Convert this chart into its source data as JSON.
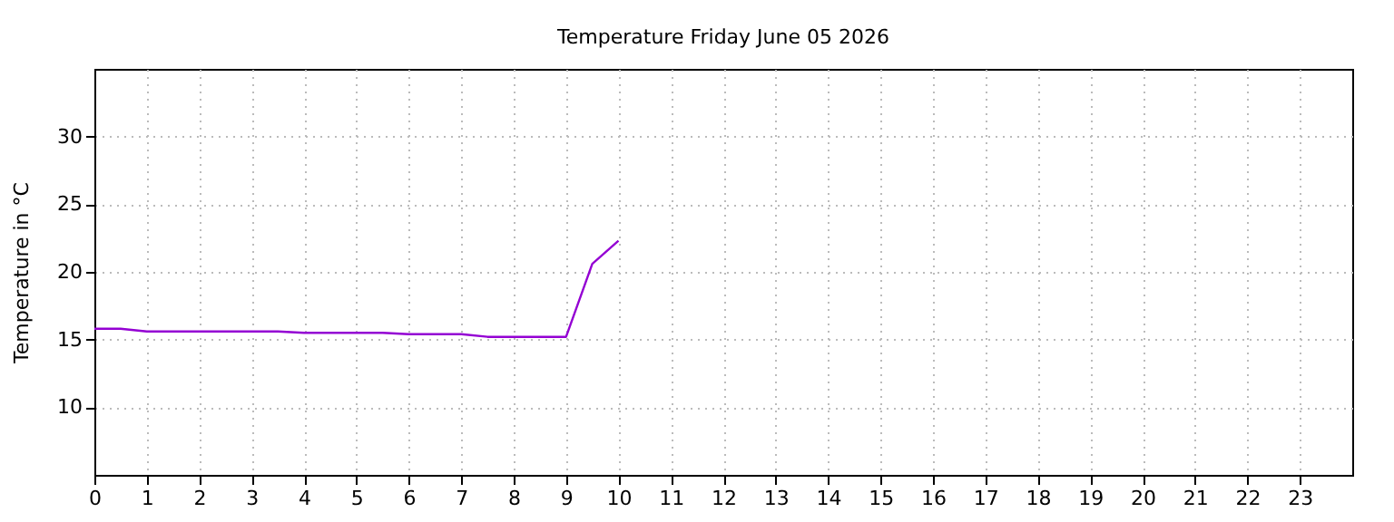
{
  "chart_data": {
    "type": "line",
    "title": "Temperature Friday June 05 2026",
    "ylabel": "Temperature in °C",
    "x": [
      0,
      0.5,
      1,
      3.5,
      4,
      5.5,
      6,
      7,
      7.5,
      9,
      9.5,
      10
    ],
    "series": [
      {
        "color": "#9400d3",
        "values": [
          15.8,
          15.8,
          15.6,
          15.6,
          15.5,
          15.5,
          15.4,
          15.4,
          15.2,
          15.2,
          20.6,
          22.3
        ]
      }
    ],
    "xlim": [
      0,
      24
    ],
    "xticks": [
      0,
      1,
      2,
      3,
      4,
      5,
      6,
      7,
      8,
      9,
      10,
      11,
      12,
      13,
      14,
      15,
      16,
      17,
      18,
      19,
      20,
      21,
      22,
      23
    ],
    "ylim": [
      5,
      35
    ],
    "yticks": [
      10,
      15,
      20,
      25,
      30
    ],
    "grid": true
  }
}
